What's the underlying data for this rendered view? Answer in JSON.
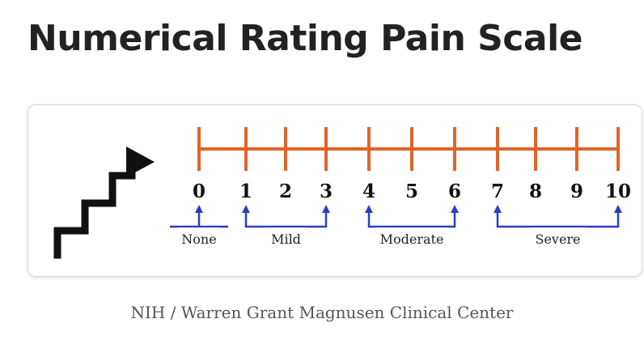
{
  "title": "Numerical Rating Pain Scale",
  "caption": "NIH / Warren Grant Magnusen Clinical Center",
  "scale": {
    "min": 0,
    "max": 10,
    "numbers": [
      "0",
      "1",
      "2",
      "3",
      "4",
      "5",
      "6",
      "7",
      "8",
      "9",
      "10"
    ]
  },
  "categories": [
    {
      "label": "None",
      "from": 0,
      "to": 0
    },
    {
      "label": "Mild",
      "from": 1,
      "to": 3
    },
    {
      "label": "Moderate",
      "from": 4,
      "to": 6
    },
    {
      "label": "Severe",
      "from": 7,
      "to": 10
    }
  ],
  "colors": {
    "scale_line": "#e0632a",
    "bracket": "#2a3fc4",
    "arrow": "#111111",
    "text": "#111111"
  },
  "icons": [
    "stair-arrow-icon"
  ]
}
